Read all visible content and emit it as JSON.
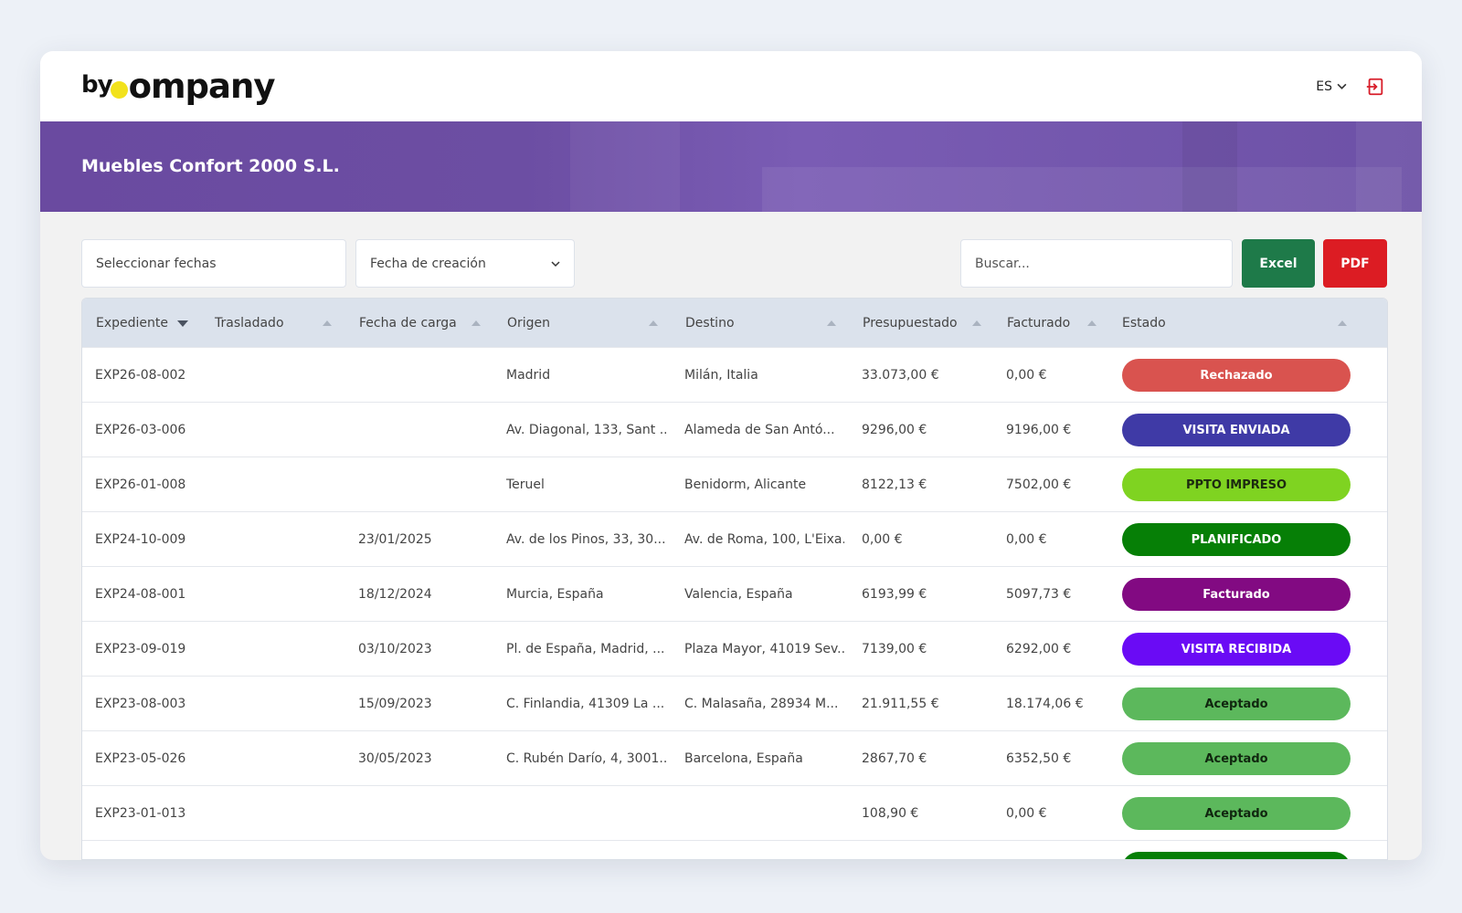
{
  "header": {
    "logo_text": "bycompany",
    "language": "ES"
  },
  "banner": {
    "company_name": "Muebles Confort 2000 S.L."
  },
  "filters": {
    "date_placeholder": "Seleccionar fechas",
    "date_type_selected": "Fecha de creación",
    "search_placeholder": "Buscar...",
    "excel_label": "Excel",
    "pdf_label": "PDF"
  },
  "table": {
    "columns": [
      "Expediente",
      "Trasladado",
      "Fecha de carga",
      "Origen",
      "Destino",
      "Presupuestado",
      "Facturado",
      "Estado"
    ],
    "rows": [
      {
        "expediente": "EXP26-08-002",
        "trasladado": "",
        "fecha": "",
        "origen": "Madrid",
        "destino": "Milán, Italia",
        "presupuestado": "33.073,00 €",
        "facturado": "0,00 €",
        "estado": "Rechazado",
        "bg": "#d9534f",
        "fg": "#ffffff"
      },
      {
        "expediente": "EXP26-03-006",
        "trasladado": "",
        "fecha": "",
        "origen": "Av. Diagonal, 133, Sant ...",
        "destino": "Alameda de San Antó...",
        "presupuestado": "9296,00 €",
        "facturado": "9196,00 €",
        "estado": "VISITA ENVIADA",
        "bg": "#3f3aa6",
        "fg": "#ffffff"
      },
      {
        "expediente": "EXP26-01-008",
        "trasladado": "",
        "fecha": "",
        "origen": "Teruel",
        "destino": "Benidorm, Alicante",
        "presupuestado": "8122,13 €",
        "facturado": "7502,00 €",
        "estado": "PPTO IMPRESO",
        "bg": "#7fd321",
        "fg": "#1c2a10"
      },
      {
        "expediente": "EXP24-10-009",
        "trasladado": "",
        "fecha": "23/01/2025",
        "origen": "Av. de los Pinos, 33, 30...",
        "destino": "Av. de Roma, 100, L'Eixa...",
        "presupuestado": "0,00 €",
        "facturado": "0,00 €",
        "estado": "PLANIFICADO",
        "bg": "#067f06",
        "fg": "#ffffff"
      },
      {
        "expediente": "EXP24-08-001",
        "trasladado": "",
        "fecha": "18/12/2024",
        "origen": "Murcia, España",
        "destino": "Valencia, España",
        "presupuestado": "6193,99 €",
        "facturado": "5097,73 €",
        "estado": "Facturado",
        "bg": "#820a82",
        "fg": "#ffffff"
      },
      {
        "expediente": "EXP23-09-019",
        "trasladado": "",
        "fecha": "03/10/2023",
        "origen": "Pl. de España, Madrid, ...",
        "destino": "Plaza Mayor, 41019 Sev...",
        "presupuestado": "7139,00 €",
        "facturado": "6292,00 €",
        "estado": "VISITA RECIBIDA",
        "bg": "#6a0bf5",
        "fg": "#ffffff"
      },
      {
        "expediente": "EXP23-08-003",
        "trasladado": "",
        "fecha": "15/09/2023",
        "origen": "C. Finlandia, 41309 La ...",
        "destino": "C. Malasaña, 28934 M...",
        "presupuestado": "21.911,55 €",
        "facturado": "18.174,06 €",
        "estado": "Aceptado",
        "bg": "#5cb85c",
        "fg": "#10260f"
      },
      {
        "expediente": "EXP23-05-026",
        "trasladado": "",
        "fecha": "30/05/2023",
        "origen": "C. Rubén Darío, 4, 3001...",
        "destino": "Barcelona, España",
        "presupuestado": "2867,70 €",
        "facturado": "6352,50 €",
        "estado": "Aceptado",
        "bg": "#5cb85c",
        "fg": "#10260f"
      },
      {
        "expediente": "EXP23-01-013",
        "trasladado": "",
        "fecha": "",
        "origen": "",
        "destino": "",
        "presupuestado": "108,90 €",
        "facturado": "0,00 €",
        "estado": "Aceptado",
        "bg": "#5cb85c",
        "fg": "#10260f"
      },
      {
        "expediente": "",
        "trasladado": "",
        "fecha": "",
        "origen": "",
        "destino": "",
        "presupuestado": "",
        "facturado": "",
        "estado": "",
        "bg": "#067f06",
        "fg": "#ffffff"
      }
    ]
  }
}
